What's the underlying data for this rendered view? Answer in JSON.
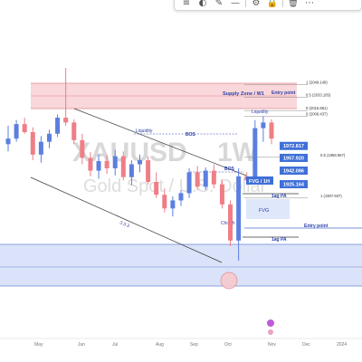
{
  "toolbar": {
    "tools": [
      {
        "name": "menu-icon",
        "glyph": "≡"
      },
      {
        "name": "palette-icon",
        "glyph": "◐"
      },
      {
        "name": "pencil-icon",
        "glyph": "✎"
      },
      {
        "name": "line-width-icon",
        "glyph": "—"
      },
      {
        "name": "settings-icon",
        "glyph": "⚙"
      },
      {
        "name": "lock-icon",
        "glyph": "🔒"
      },
      {
        "name": "trash-icon",
        "glyph": "🗑"
      },
      {
        "name": "more-icon",
        "glyph": "⋯"
      }
    ]
  },
  "watermark": {
    "symbol": "XAUUSD",
    "timeframe": "1W",
    "subtitle": "Gold Spot / U.S. Dollar"
  },
  "zones": {
    "supply_zone_label": "Supply Zone / W1",
    "entry_point_top": "Entry point",
    "entry_point_mid": "Entry point",
    "fvg_label": "FVG",
    "fvg_1h_label": "FVG / 1H",
    "liquidity_left": "Liquidity",
    "liquidity_right": "Liquidity",
    "bos_left": "BOS",
    "bos_mid": "BOS",
    "choch_label": "ChoCh",
    "pa_1": "1ag PA",
    "pa_2": "1ag PA"
  },
  "fib_levels": [
    {
      "label": "1 (2049.149)",
      "level": 2049.149
    },
    {
      "label": "0.5 (2033.105)",
      "level": 2033.105
    },
    {
      "label": "0 (2016.861)",
      "level": 2016.861
    },
    {
      "label": "0 (2009.437)",
      "level": 2009.437
    },
    {
      "label": "0.5 (1958.657)",
      "level": 1958.657
    },
    {
      "label": "1 (1907.937)",
      "level": 1907.937
    }
  ],
  "price_tags": [
    {
      "text": "1972.817",
      "price": 1972.817,
      "color": "#3f6fd8"
    },
    {
      "text": "1957.920",
      "price": 1957.92,
      "color": "#3f6fd8"
    },
    {
      "text": "1942.086",
      "price": 1942.086,
      "color": "#3f6fd8"
    },
    {
      "text": "1925.164",
      "price": 1925.164,
      "color": "#3f6fd8"
    }
  ],
  "x_axis": [
    "May",
    "Jun",
    "Jul",
    "Aug",
    "Sep",
    "Oct",
    "Nov",
    "Dec",
    "2024"
  ],
  "channel_label": "3.3.3",
  "colors": {
    "bull": "#5b7fe0",
    "bear": "#ef7e86",
    "supply_zone": "#f7c9cd",
    "demand_zone": "#cdd9f7",
    "line": "#3a3a3a"
  },
  "candles": [
    {
      "o": 1975,
      "h": 1998,
      "l": 1966,
      "c": 1982
    },
    {
      "o": 1982,
      "h": 2005,
      "l": 1978,
      "c": 2000
    },
    {
      "o": 2000,
      "h": 2008,
      "l": 1988,
      "c": 1990
    },
    {
      "o": 1990,
      "h": 1996,
      "l": 1955,
      "c": 1962
    },
    {
      "o": 1962,
      "h": 1985,
      "l": 1952,
      "c": 1978
    },
    {
      "o": 1978,
      "h": 1993,
      "l": 1970,
      "c": 1988
    },
    {
      "o": 1988,
      "h": 2012,
      "l": 1984,
      "c": 2008
    },
    {
      "o": 2008,
      "h": 2070,
      "l": 1998,
      "c": 2002
    },
    {
      "o": 2002,
      "h": 2006,
      "l": 1975,
      "c": 1980
    },
    {
      "o": 1980,
      "h": 1988,
      "l": 1950,
      "c": 1958
    },
    {
      "o": 1958,
      "h": 1965,
      "l": 1935,
      "c": 1942
    },
    {
      "o": 1942,
      "h": 1962,
      "l": 1932,
      "c": 1954
    },
    {
      "o": 1954,
      "h": 1962,
      "l": 1938,
      "c": 1945
    },
    {
      "o": 1945,
      "h": 1968,
      "l": 1936,
      "c": 1960
    },
    {
      "o": 1960,
      "h": 1966,
      "l": 1930,
      "c": 1934
    },
    {
      "o": 1934,
      "h": 1955,
      "l": 1924,
      "c": 1950
    },
    {
      "o": 1950,
      "h": 1962,
      "l": 1940,
      "c": 1955
    },
    {
      "o": 1955,
      "h": 1960,
      "l": 1925,
      "c": 1928
    },
    {
      "o": 1928,
      "h": 1940,
      "l": 1908,
      "c": 1912
    },
    {
      "o": 1912,
      "h": 1920,
      "l": 1890,
      "c": 1895
    },
    {
      "o": 1895,
      "h": 1910,
      "l": 1885,
      "c": 1905
    },
    {
      "o": 1905,
      "h": 1918,
      "l": 1898,
      "c": 1914
    },
    {
      "o": 1914,
      "h": 1945,
      "l": 1908,
      "c": 1940
    },
    {
      "o": 1940,
      "h": 1948,
      "l": 1918,
      "c": 1922
    },
    {
      "o": 1922,
      "h": 1946,
      "l": 1918,
      "c": 1942
    },
    {
      "o": 1942,
      "h": 1950,
      "l": 1920,
      "c": 1925
    },
    {
      "o": 1925,
      "h": 1930,
      "l": 1895,
      "c": 1900
    },
    {
      "o": 1900,
      "h": 1905,
      "l": 1848,
      "c": 1855
    },
    {
      "o": 1855,
      "h": 1945,
      "l": 1830,
      "c": 1935
    },
    {
      "o": 1935,
      "h": 1940,
      "l": 1925,
      "c": 1930
    },
    {
      "o": 1930,
      "h": 2005,
      "l": 1925,
      "c": 1995
    },
    {
      "o": 1995,
      "h": 2010,
      "l": 1978,
      "c": 2002
    },
    {
      "o": 2002,
      "h": 2006,
      "l": 1975,
      "c": 1982
    }
  ]
}
